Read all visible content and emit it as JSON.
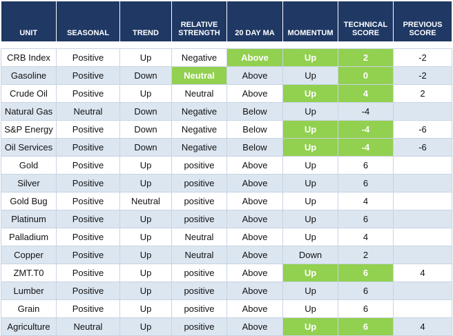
{
  "table": {
    "header": [
      "UNIT",
      "SEASONAL",
      "TREND",
      "RELATIVE STRENGTH",
      "20 DAY MA",
      "MOMENTUM",
      "TECHNICAL SCORE",
      "PREVIOUS SCORE"
    ],
    "rows": [
      [
        "CRB Index",
        "Positive",
        "Up",
        "Negative",
        "Above",
        "Up",
        "2",
        "-2"
      ],
      [
        "Gasoline",
        "Positive",
        "Down",
        "Neutral",
        "Above",
        "Up",
        "0",
        "-2"
      ],
      [
        "Crude Oil",
        "Positive",
        "Up",
        "Neutral",
        "Above",
        "Up",
        "4",
        "2"
      ],
      [
        "Natural Gas",
        "Neutral",
        "Down",
        "Negative",
        "Below",
        "Up",
        "-4",
        null
      ],
      [
        "S&P Energy",
        "Positive",
        "Down",
        "Negative",
        "Below",
        "Up",
        "-4",
        "-6"
      ],
      [
        "Oil Services",
        "Positive",
        "Down",
        "Negative",
        "Below",
        "Up",
        "-4",
        "-6"
      ],
      [
        "Gold",
        "Positive",
        "Up",
        "positive",
        "Above",
        "Up",
        "6",
        null
      ],
      [
        "Silver",
        "Positive",
        "Up",
        "positive",
        "Above",
        "Up",
        "6",
        null
      ],
      [
        "Gold Bug",
        "Positive",
        "Neutral",
        "positive",
        "Above",
        "Up",
        "4",
        null
      ],
      [
        "Platinum",
        "Positive",
        "Up",
        "positive",
        "Above",
        "Up",
        "6",
        null
      ],
      [
        "Palladium",
        "Positive",
        "Up",
        "Neutral",
        "Above",
        "Up",
        "4",
        null
      ],
      [
        "Copper",
        "Positive",
        "Up",
        "Neutral",
        "Above",
        "Down",
        "2",
        null
      ],
      [
        "ZMT.T0",
        "Positive",
        "Up",
        "positive",
        "Above",
        "Up",
        "6",
        "4"
      ],
      [
        "Lumber",
        "Positive",
        "Up",
        "positive",
        "Above",
        "Up",
        "6",
        null
      ],
      [
        "Grain",
        "Positive",
        "Up",
        "positive",
        "Above",
        "Up",
        "6",
        null
      ],
      [
        "Agriculture",
        "Neutral",
        "Up",
        "positive",
        "Above",
        "Up",
        "6",
        "4"
      ]
    ]
  }
}
